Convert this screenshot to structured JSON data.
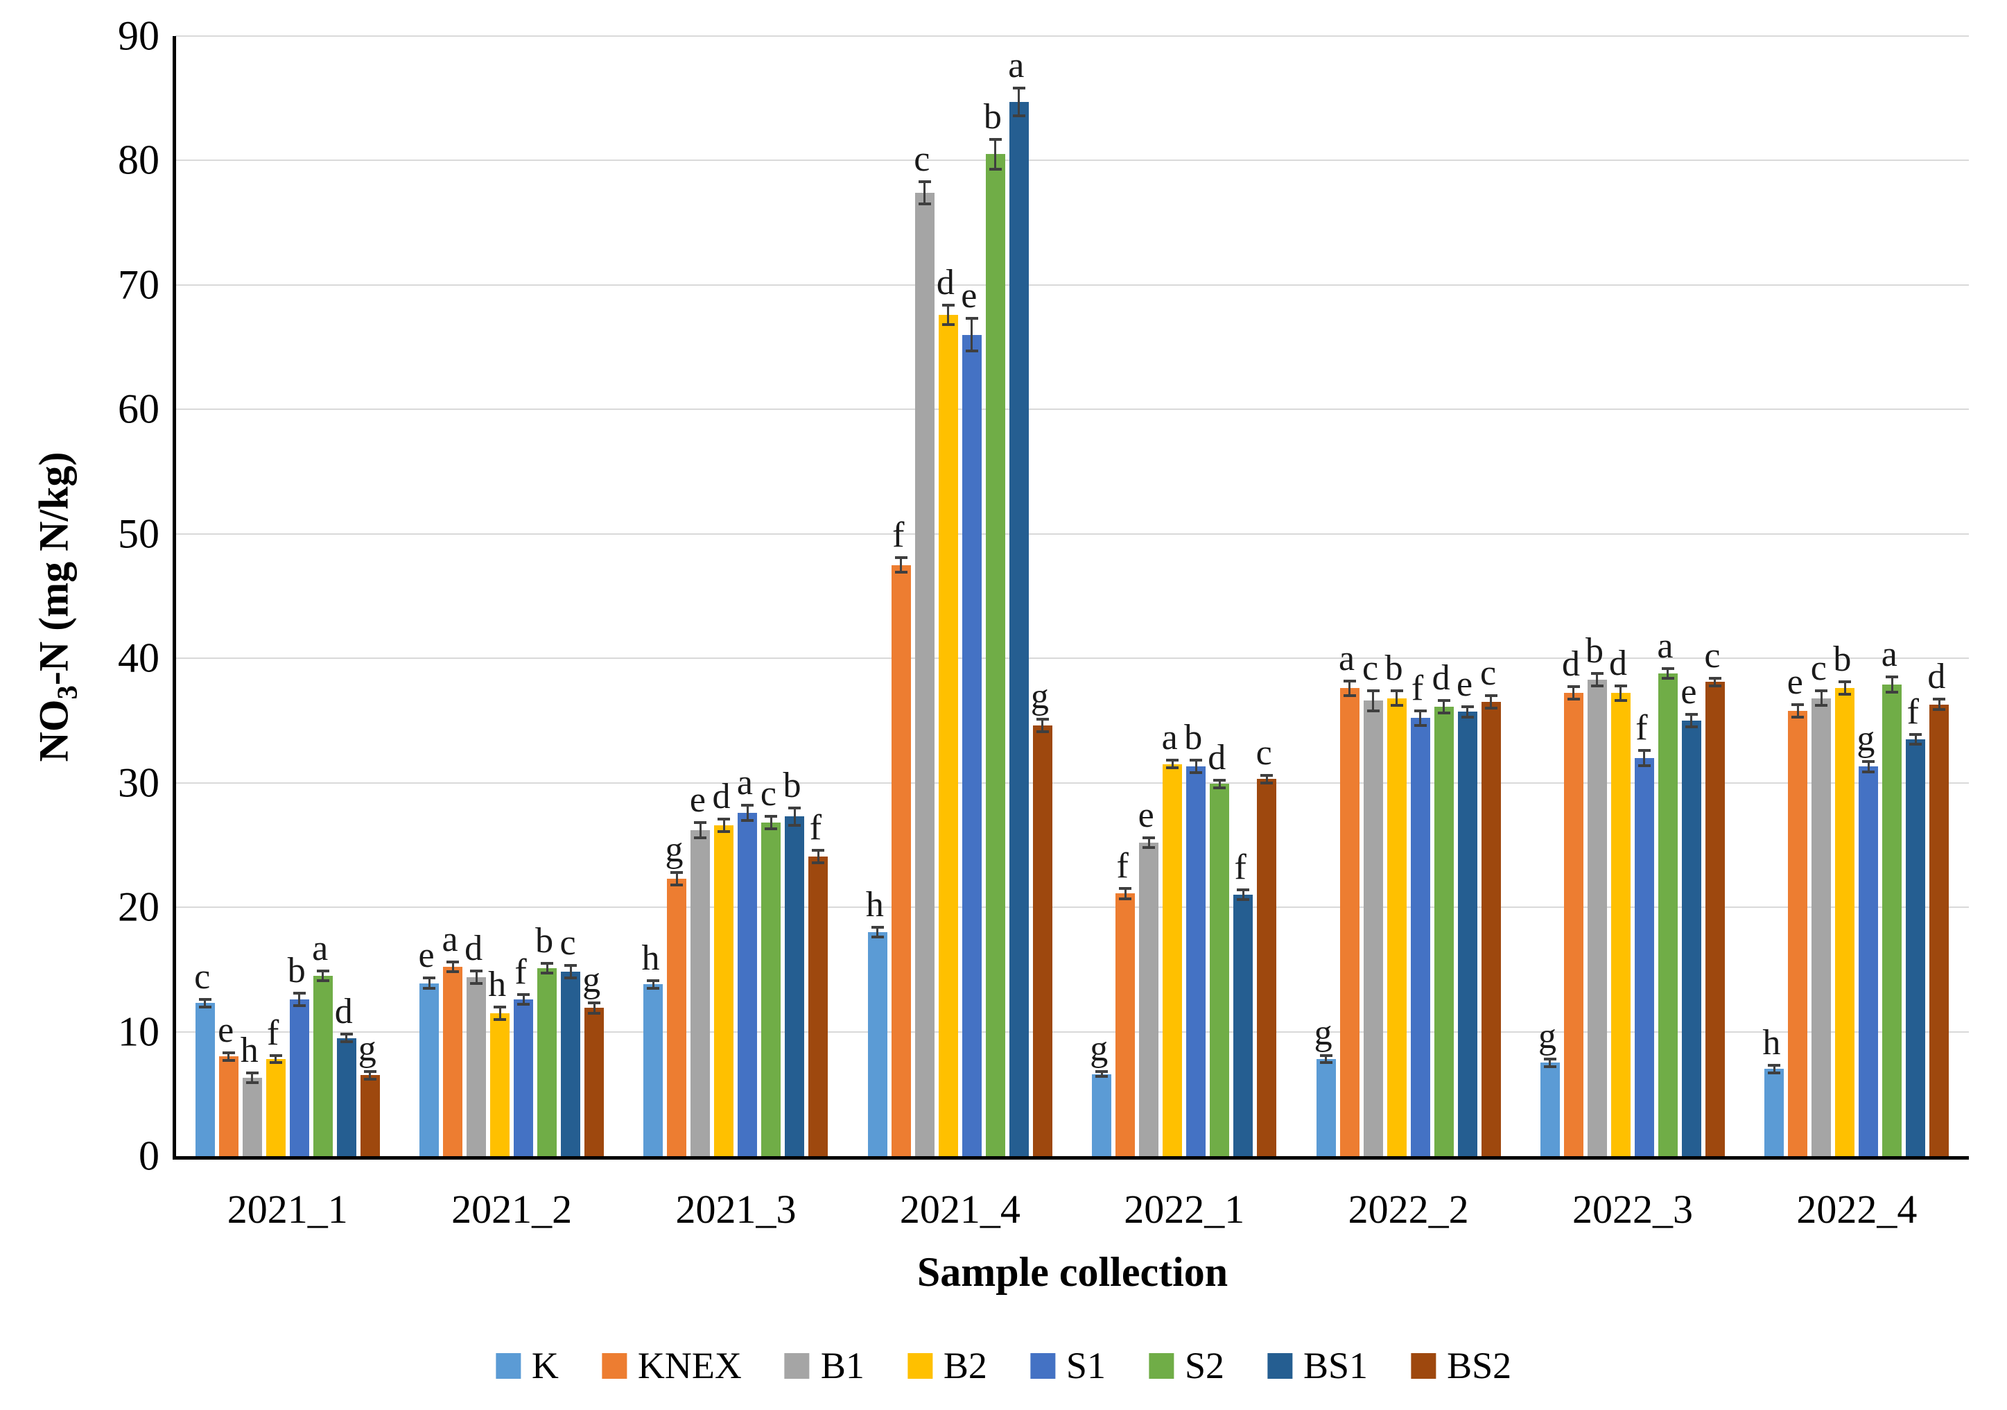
{
  "chart_data": {
    "type": "bar",
    "title": "",
    "xlabel": "Sample collection",
    "ylabel_prefix": "NO",
    "ylabel_sub": "3",
    "ylabel_suffix": "-N (mg N/kg)",
    "ylim": [
      0,
      90
    ],
    "y_ticks": [
      0,
      10,
      20,
      30,
      40,
      50,
      60,
      70,
      80,
      90
    ],
    "grid": "horizontal",
    "legend_position": "bottom",
    "categories": [
      "2021_1",
      "2021_2",
      "2021_3",
      "2021_4",
      "2022_1",
      "2022_2",
      "2022_3",
      "2022_4"
    ],
    "series": [
      {
        "name": "K",
        "color": "#5B9BD5",
        "values": [
          12.3,
          13.9,
          13.8,
          18.0,
          6.6,
          7.8,
          7.5,
          7.0
        ],
        "errors": [
          0.3,
          0.4,
          0.3,
          0.4,
          0.2,
          0.3,
          0.3,
          0.3
        ],
        "letters": [
          "c",
          "e",
          "h",
          "h",
          "g",
          "g",
          "g",
          "h"
        ]
      },
      {
        "name": "KNEX",
        "color": "#ED7D31",
        "values": [
          8.0,
          15.2,
          22.3,
          47.5,
          21.1,
          37.6,
          37.2,
          35.8
        ],
        "errors": [
          0.3,
          0.4,
          0.5,
          0.6,
          0.4,
          0.6,
          0.5,
          0.5
        ],
        "letters": [
          "e",
          "a",
          "g",
          "f",
          "f",
          "a",
          "d",
          "e"
        ]
      },
      {
        "name": "B1",
        "color": "#A5A5A5",
        "values": [
          6.3,
          14.4,
          26.2,
          77.4,
          25.2,
          36.6,
          38.3,
          36.8
        ],
        "errors": [
          0.4,
          0.5,
          0.6,
          0.9,
          0.4,
          0.8,
          0.5,
          0.6
        ],
        "letters": [
          "h",
          "d",
          "e",
          "c",
          "e",
          "c",
          "b",
          "c"
        ]
      },
      {
        "name": "B2",
        "color": "#FFC000",
        "values": [
          7.8,
          11.5,
          26.6,
          67.6,
          31.5,
          36.8,
          37.2,
          37.6
        ],
        "errors": [
          0.3,
          0.5,
          0.5,
          0.8,
          0.3,
          0.6,
          0.6,
          0.5
        ],
        "letters": [
          "f",
          "h",
          "d",
          "d",
          "a",
          "b",
          "d",
          "b"
        ]
      },
      {
        "name": "S1",
        "color": "#4472C4",
        "values": [
          12.6,
          12.6,
          27.6,
          66.0,
          31.3,
          35.2,
          32.0,
          31.3
        ],
        "errors": [
          0.5,
          0.4,
          0.6,
          1.3,
          0.5,
          0.6,
          0.6,
          0.4
        ],
        "letters": [
          "b",
          "f",
          "a",
          "e",
          "b",
          "f",
          "f",
          "g"
        ]
      },
      {
        "name": "S2",
        "color": "#70AD47",
        "values": [
          14.5,
          15.1,
          26.8,
          80.5,
          29.9,
          36.1,
          38.8,
          37.9
        ],
        "errors": [
          0.4,
          0.4,
          0.5,
          1.2,
          0.3,
          0.5,
          0.4,
          0.6
        ],
        "letters": [
          "a",
          "b",
          "c",
          "b",
          "d",
          "d",
          "a",
          "a"
        ]
      },
      {
        "name": "BS1",
        "color": "#255E91",
        "values": [
          9.5,
          14.8,
          27.3,
          84.7,
          21.0,
          35.7,
          35.0,
          33.5
        ],
        "errors": [
          0.3,
          0.5,
          0.7,
          1.1,
          0.4,
          0.4,
          0.5,
          0.4
        ],
        "letters": [
          "d",
          "c",
          "b",
          "a",
          "f",
          "e",
          "e",
          "f"
        ]
      },
      {
        "name": "BS2",
        "color": "#9E480E",
        "values": [
          6.5,
          11.9,
          24.1,
          34.6,
          30.3,
          36.5,
          38.1,
          36.3
        ],
        "errors": [
          0.3,
          0.4,
          0.5,
          0.5,
          0.3,
          0.5,
          0.3,
          0.4
        ],
        "letters": [
          "g",
          "g",
          "f",
          "g",
          "c",
          "c",
          "c",
          "d"
        ]
      }
    ]
  }
}
